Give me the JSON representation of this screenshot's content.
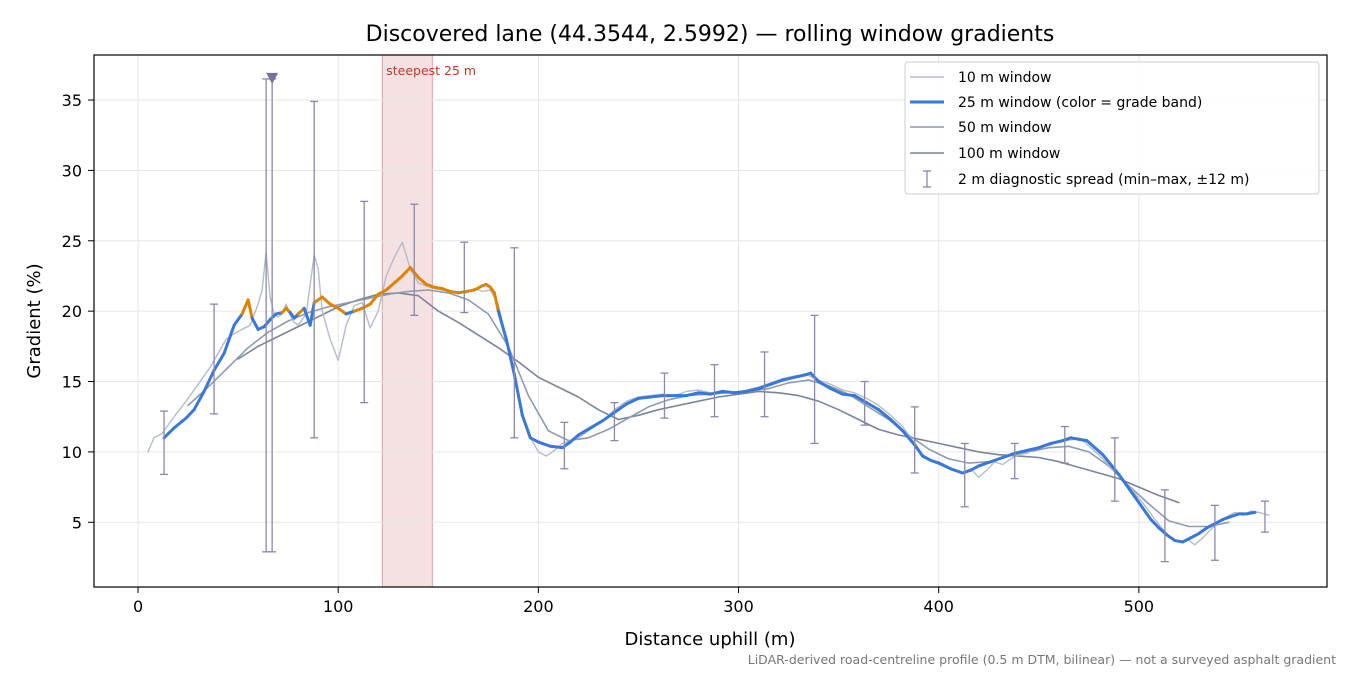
{
  "chart_data": {
    "type": "line",
    "title": "Discovered lane (44.3544, 2.5992) — rolling window gradients",
    "xlabel": "Distance uphill (m)",
    "ylabel": "Gradient (%)",
    "xlim": [
      -22,
      594
    ],
    "ylim": [
      0.4,
      38.2
    ],
    "x_ticks": [
      0,
      100,
      200,
      300,
      400,
      500
    ],
    "y_ticks": [
      5,
      10,
      15,
      20,
      25,
      30,
      35
    ],
    "grid": true,
    "legend_position": "top-right",
    "footnote": "LiDAR-derived road-centreline profile (0.5 m DTM, bilinear) — not a surveyed asphalt gradient",
    "highlight": {
      "label": "steepest 25 m",
      "x_range": [
        122,
        147
      ],
      "color": "#e8b4bb"
    },
    "grade_band_colors": {
      "above_20": "#db8400",
      "below_20": "#3a78d8",
      "threshold": 20
    },
    "series": [
      {
        "name": "10 m window",
        "color": "#b4bccb",
        "x": [
          5,
          8,
          12,
          18,
          24,
          30,
          36,
          40,
          44,
          48,
          52,
          56,
          60,
          62,
          64,
          66,
          68,
          70,
          72,
          74,
          76,
          78,
          80,
          84,
          88,
          90,
          92,
          96,
          100,
          104,
          108,
          112,
          116,
          120,
          124,
          128,
          132,
          136,
          140,
          144,
          148,
          152,
          156,
          160,
          164,
          168,
          172,
          176,
          180,
          184,
          188,
          192,
          196,
          200,
          204,
          208,
          212,
          216,
          220,
          226,
          232,
          238,
          244,
          250,
          256,
          262,
          268,
          274,
          280,
          286,
          292,
          298,
          304,
          310,
          316,
          322,
          328,
          334,
          340,
          346,
          352,
          358,
          364,
          370,
          376,
          382,
          388,
          392,
          396,
          400,
          404,
          408,
          412,
          416,
          420,
          424,
          428,
          432,
          436,
          440,
          444,
          448,
          452,
          456,
          460,
          464,
          468,
          472,
          476,
          480,
          484,
          488,
          492,
          496,
          500,
          504,
          508,
          512,
          516,
          520,
          524,
          528,
          532,
          536,
          540,
          544,
          548,
          552,
          556,
          560,
          565
        ],
        "y": [
          10.0,
          11.0,
          11.3,
          12.5,
          13.6,
          14.8,
          16.0,
          17.0,
          18.0,
          18.4,
          18.7,
          19.0,
          20.5,
          21.5,
          24.2,
          21.0,
          19.8,
          19.6,
          19.8,
          20.5,
          19.7,
          19.2,
          19.0,
          19.8,
          24.0,
          23.0,
          20.0,
          18.0,
          16.5,
          19.0,
          20.4,
          20.6,
          18.8,
          20.0,
          22.5,
          23.8,
          24.9,
          23.0,
          22.0,
          21.8,
          21.6,
          21.5,
          21.4,
          21.4,
          21.3,
          21.6,
          21.4,
          21.5,
          20.5,
          18.0,
          15.5,
          12.5,
          11.0,
          10.0,
          9.7,
          10.1,
          10.6,
          10.8,
          11.0,
          11.6,
          12.2,
          13.0,
          13.6,
          13.9,
          14.0,
          14.1,
          14.0,
          14.3,
          14.4,
          14.2,
          14.3,
          14.2,
          14.4,
          14.6,
          14.9,
          15.2,
          15.4,
          15.5,
          15.1,
          14.8,
          14.4,
          14.2,
          13.8,
          13.3,
          12.6,
          11.8,
          10.6,
          9.8,
          9.4,
          9.3,
          9.0,
          8.7,
          8.5,
          8.8,
          8.2,
          8.7,
          9.3,
          9.1,
          9.5,
          9.8,
          9.9,
          10.2,
          10.4,
          10.5,
          10.7,
          10.8,
          10.9,
          10.8,
          10.3,
          9.8,
          9.2,
          8.6,
          8.0,
          7.4,
          6.7,
          6.0,
          5.2,
          4.5,
          3.9,
          3.6,
          3.8,
          3.4,
          3.9,
          4.5,
          5.0,
          5.4,
          5.7,
          5.5,
          5.8,
          5.7,
          5.5
        ]
      },
      {
        "name": "25 m window (color = grade band)",
        "color": "#3a78d8",
        "x": [
          13,
          18,
          24,
          28,
          33,
          38,
          43,
          48,
          52,
          55,
          57,
          60,
          63,
          66,
          69,
          72,
          74,
          76,
          78,
          80,
          83,
          86,
          88,
          92,
          96,
          100,
          104,
          108,
          112,
          116,
          120,
          124,
          128,
          132,
          134,
          136,
          140,
          144,
          148,
          152,
          156,
          160,
          164,
          168,
          172,
          174,
          176,
          178,
          180,
          184,
          188,
          192,
          196,
          200,
          206,
          212,
          216,
          220,
          226,
          232,
          238,
          244,
          250,
          256,
          262,
          268,
          274,
          280,
          286,
          292,
          298,
          304,
          310,
          316,
          322,
          328,
          334,
          336,
          340,
          346,
          352,
          358,
          364,
          370,
          376,
          382,
          388,
          392,
          396,
          400,
          406,
          412,
          416,
          420,
          426,
          432,
          438,
          444,
          450,
          456,
          462,
          466,
          470,
          474,
          478,
          482,
          486,
          490,
          494,
          498,
          502,
          506,
          510,
          514,
          518,
          522,
          526,
          530,
          534,
          538,
          542,
          546,
          550,
          554,
          558
        ],
        "y": [
          11.0,
          11.7,
          12.4,
          13.0,
          14.3,
          15.8,
          17.0,
          19.0,
          19.8,
          20.8,
          19.5,
          18.7,
          18.9,
          19.4,
          19.8,
          19.9,
          20.2,
          19.9,
          19.5,
          19.8,
          20.2,
          19.0,
          20.6,
          21.0,
          20.5,
          20.2,
          19.8,
          20.0,
          20.2,
          20.5,
          21.2,
          21.5,
          22.0,
          22.5,
          22.8,
          23.1,
          22.4,
          21.9,
          21.7,
          21.6,
          21.4,
          21.3,
          21.4,
          21.5,
          21.8,
          21.9,
          21.7,
          21.3,
          20.0,
          18.0,
          15.5,
          12.6,
          11.0,
          10.7,
          10.4,
          10.3,
          10.7,
          11.2,
          11.7,
          12.2,
          12.8,
          13.4,
          13.8,
          13.9,
          14.0,
          14.0,
          14.0,
          14.2,
          14.1,
          14.3,
          14.2,
          14.3,
          14.5,
          14.8,
          15.1,
          15.3,
          15.5,
          15.6,
          15.0,
          14.5,
          14.1,
          14.0,
          13.5,
          13.0,
          12.3,
          11.5,
          10.5,
          9.7,
          9.4,
          9.2,
          8.8,
          8.5,
          8.7,
          9.0,
          9.3,
          9.6,
          9.9,
          10.1,
          10.3,
          10.6,
          10.8,
          11.0,
          10.9,
          10.8,
          10.3,
          9.8,
          9.1,
          8.4,
          7.6,
          6.8,
          6.0,
          5.2,
          4.6,
          4.1,
          3.7,
          3.6,
          3.9,
          4.2,
          4.6,
          4.9,
          5.2,
          5.4,
          5.6,
          5.6,
          5.7
        ]
      },
      {
        "name": "50 m window",
        "color": "#8f9bb0",
        "x": [
          25,
          35,
          45,
          55,
          65,
          75,
          85,
          95,
          105,
          115,
          125,
          135,
          145,
          155,
          165,
          175,
          185,
          195,
          205,
          215,
          225,
          235,
          245,
          255,
          265,
          275,
          285,
          295,
          305,
          315,
          325,
          335,
          345,
          355,
          365,
          375,
          385,
          395,
          405,
          415,
          425,
          435,
          445,
          455,
          465,
          475,
          485,
          495,
          505,
          515,
          525,
          535,
          545
        ],
        "y": [
          13.3,
          14.6,
          16.0,
          17.4,
          18.5,
          19.3,
          19.9,
          20.3,
          20.6,
          20.9,
          21.2,
          21.4,
          21.5,
          21.3,
          20.8,
          19.8,
          17.5,
          14.0,
          11.5,
          10.8,
          11.0,
          11.6,
          12.4,
          13.2,
          13.7,
          14.0,
          14.1,
          14.2,
          14.3,
          14.5,
          14.9,
          15.1,
          14.7,
          14.1,
          13.2,
          12.3,
          11.2,
          10.2,
          9.5,
          9.2,
          9.3,
          9.7,
          10.0,
          10.3,
          10.4,
          10.0,
          9.0,
          7.6,
          6.3,
          5.1,
          4.7,
          4.7,
          5.0
        ]
      },
      {
        "name": "100 m window",
        "color": "#7c8596",
        "x": [
          50,
          60,
          70,
          80,
          90,
          100,
          110,
          120,
          130,
          140,
          150,
          160,
          170,
          180,
          190,
          200,
          210,
          220,
          230,
          240,
          250,
          260,
          270,
          280,
          290,
          300,
          310,
          320,
          330,
          340,
          350,
          360,
          370,
          380,
          390,
          400,
          410,
          420,
          430,
          440,
          450,
          460,
          470,
          480,
          490,
          500,
          510,
          520
        ],
        "y": [
          16.6,
          17.5,
          18.2,
          18.9,
          19.6,
          20.3,
          20.8,
          21.2,
          21.3,
          21.1,
          20.0,
          19.2,
          18.3,
          17.4,
          16.4,
          15.3,
          14.6,
          13.9,
          13.0,
          12.3,
          12.6,
          13.0,
          13.3,
          13.6,
          13.9,
          14.1,
          14.3,
          14.2,
          14.0,
          13.6,
          13.0,
          12.3,
          11.6,
          11.2,
          10.9,
          10.6,
          10.3,
          10.0,
          9.8,
          9.7,
          9.6,
          9.3,
          8.9,
          8.5,
          8.1,
          7.5,
          6.9,
          6.4
        ]
      },
      {
        "name": "2 m diagnostic spread (min–max, ±12 m)",
        "color": "#8e87ad",
        "type": "errorbar",
        "x": [
          13,
          38,
          64,
          67,
          88,
          113,
          138,
          163,
          188,
          213,
          238,
          263,
          288,
          313,
          338,
          363,
          388,
          413,
          438,
          463,
          488,
          513,
          538,
          563
        ],
        "low": [
          8.4,
          12.7,
          2.9,
          2.9,
          11.0,
          13.5,
          19.7,
          19.9,
          11.0,
          8.8,
          10.8,
          12.4,
          12.5,
          12.5,
          10.6,
          11.9,
          8.5,
          6.1,
          8.1,
          9.2,
          6.5,
          2.2,
          2.3,
          4.3
        ],
        "high": [
          12.9,
          20.5,
          36.5,
          36.5,
          34.9,
          27.8,
          27.6,
          24.9,
          24.5,
          12.1,
          13.5,
          15.6,
          16.2,
          17.1,
          19.7,
          15.0,
          13.2,
          10.6,
          10.6,
          11.8,
          11.0,
          7.3,
          6.2,
          6.5
        ],
        "clipped_marker": {
          "x": 67,
          "y": 36.5
        }
      }
    ]
  }
}
